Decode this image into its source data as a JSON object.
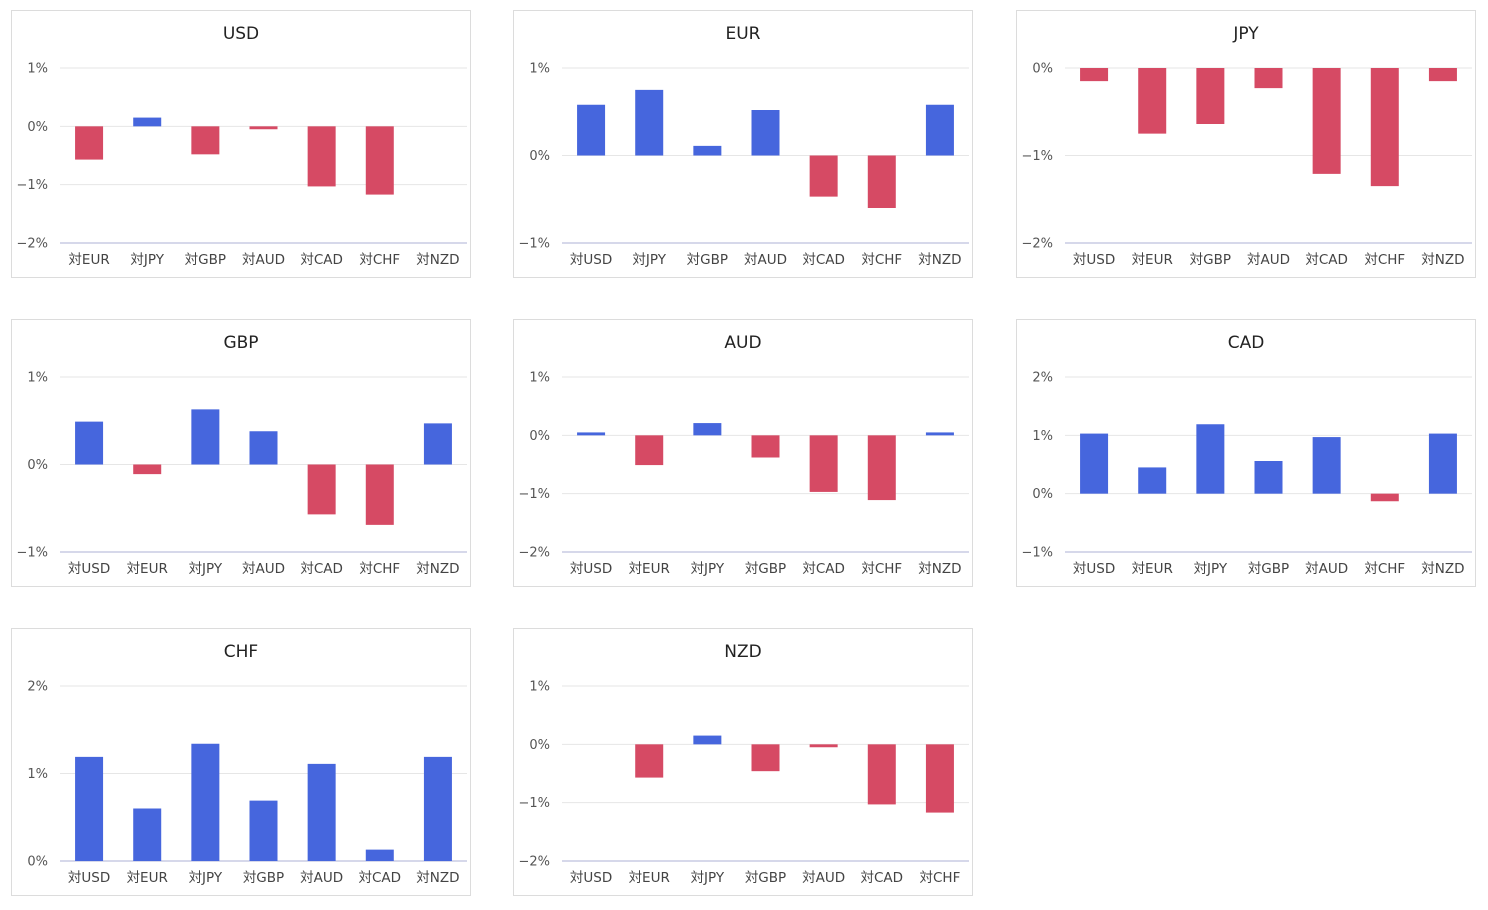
{
  "colors": {
    "positive": "#4666dd",
    "negative": "#d64a64",
    "grid": "#e6e6e6",
    "axis": "#c8cce4"
  },
  "chart_data": [
    {
      "type": "bar",
      "title": "USD",
      "categories": [
        "対EUR",
        "対JPY",
        "対GBP",
        "対AUD",
        "対CAD",
        "対CHF",
        "対NZD"
      ],
      "values": [
        -0.57,
        0.15,
        -0.48,
        -0.05,
        -1.03,
        -1.17,
        0.0
      ],
      "ylim": [
        -2,
        1
      ],
      "yticks": [
        1,
        0,
        -1,
        -2
      ],
      "ytick_labels": [
        "1%",
        "0%",
        "−1%",
        "−2%"
      ],
      "grid": true
    },
    {
      "type": "bar",
      "title": "EUR",
      "categories": [
        "対USD",
        "対JPY",
        "対GBP",
        "対AUD",
        "対CAD",
        "対CHF",
        "対NZD"
      ],
      "values": [
        0.58,
        0.75,
        0.11,
        0.52,
        -0.47,
        -0.6,
        0.58
      ],
      "ylim": [
        -1,
        1
      ],
      "yticks": [
        1,
        0,
        -1
      ],
      "ytick_labels": [
        "1%",
        "0%",
        "−1%"
      ],
      "grid": true
    },
    {
      "type": "bar",
      "title": "JPY",
      "categories": [
        "対USD",
        "対EUR",
        "対GBP",
        "対AUD",
        "対CAD",
        "対CHF",
        "対NZD"
      ],
      "values": [
        -0.15,
        -0.75,
        -0.64,
        -0.23,
        -1.21,
        -1.35,
        -0.15
      ],
      "ylim": [
        -2,
        0
      ],
      "yticks": [
        0,
        -1,
        -2
      ],
      "ytick_labels": [
        "0%",
        "−1%",
        "−2%"
      ],
      "grid": true
    },
    {
      "type": "bar",
      "title": "GBP",
      "categories": [
        "対USD",
        "対EUR",
        "対JPY",
        "対AUD",
        "対CAD",
        "対CHF",
        "対NZD"
      ],
      "values": [
        0.49,
        -0.11,
        0.63,
        0.38,
        -0.57,
        -0.69,
        0.47
      ],
      "ylim": [
        -1,
        1
      ],
      "yticks": [
        1,
        0,
        -1
      ],
      "ytick_labels": [
        "1%",
        "0%",
        "−1%"
      ],
      "grid": true
    },
    {
      "type": "bar",
      "title": "AUD",
      "categories": [
        "対USD",
        "対EUR",
        "対JPY",
        "対GBP",
        "対CAD",
        "対CHF",
        "対NZD"
      ],
      "values": [
        0.05,
        -0.51,
        0.21,
        -0.38,
        -0.97,
        -1.11,
        0.05
      ],
      "ylim": [
        -2,
        1
      ],
      "yticks": [
        1,
        0,
        -1,
        -2
      ],
      "ytick_labels": [
        "1%",
        "0%",
        "−1%",
        "−2%"
      ],
      "grid": true
    },
    {
      "type": "bar",
      "title": "CAD",
      "categories": [
        "対USD",
        "対EUR",
        "対JPY",
        "対GBP",
        "対AUD",
        "対CHF",
        "対NZD"
      ],
      "values": [
        1.03,
        0.45,
        1.19,
        0.56,
        0.97,
        -0.13,
        1.03
      ],
      "ylim": [
        -1,
        2
      ],
      "yticks": [
        2,
        1,
        0,
        -1
      ],
      "ytick_labels": [
        "2%",
        "1%",
        "0%",
        "−1%"
      ],
      "grid": true
    },
    {
      "type": "bar",
      "title": "CHF",
      "categories": [
        "対USD",
        "対EUR",
        "対JPY",
        "対GBP",
        "対AUD",
        "対CAD",
        "対NZD"
      ],
      "values": [
        1.19,
        0.6,
        1.34,
        0.69,
        1.11,
        0.13,
        1.19
      ],
      "ylim": [
        0,
        2
      ],
      "yticks": [
        2,
        1,
        0
      ],
      "ytick_labels": [
        "2%",
        "1%",
        "0%"
      ],
      "grid": true
    },
    {
      "type": "bar",
      "title": "NZD",
      "categories": [
        "対USD",
        "対EUR",
        "対JPY",
        "対GBP",
        "対AUD",
        "対CAD",
        "対CHF"
      ],
      "values": [
        0.0,
        -0.57,
        0.15,
        -0.46,
        -0.05,
        -1.03,
        -1.17
      ],
      "ylim": [
        -2,
        1
      ],
      "yticks": [
        1,
        0,
        -1,
        -2
      ],
      "ytick_labels": [
        "1%",
        "0%",
        "−1%",
        "−2%"
      ],
      "grid": true
    }
  ]
}
